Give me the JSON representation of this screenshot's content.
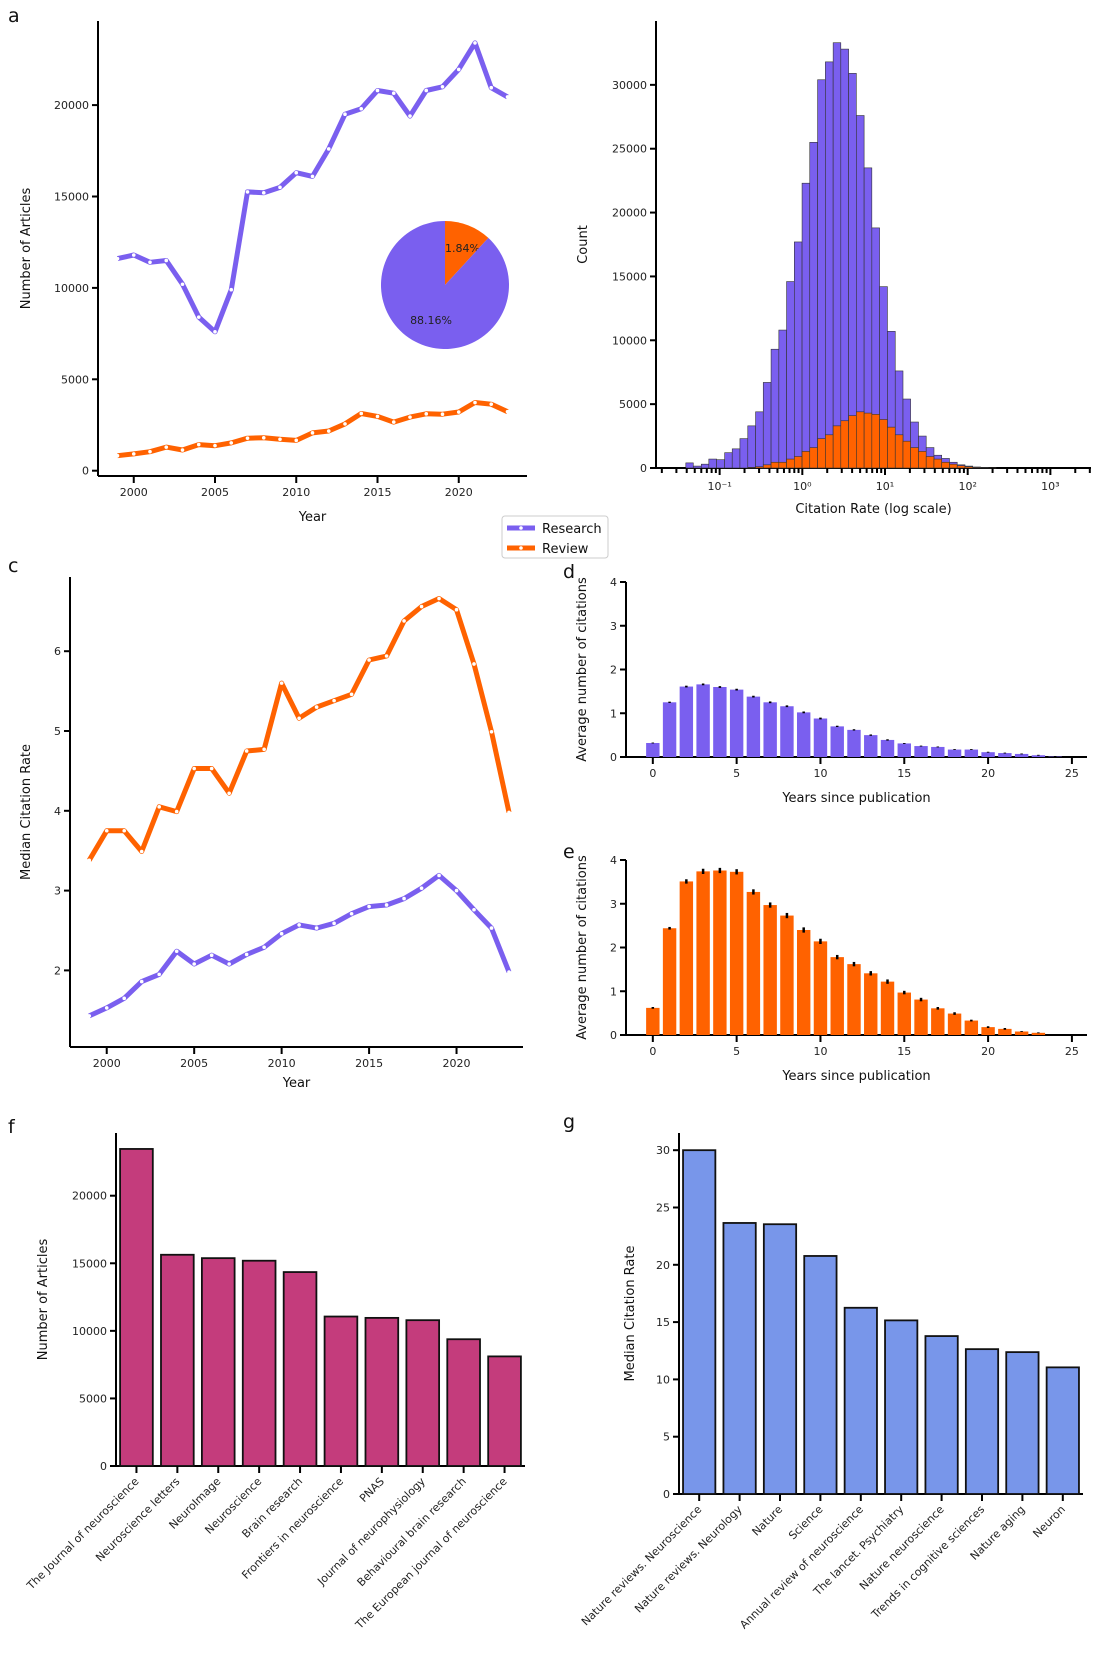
{
  "panel_labels": {
    "a": "a",
    "c": "c",
    "d": "d",
    "e": "e",
    "f": "f",
    "g": "g"
  },
  "colors": {
    "research": "#7A5FEF",
    "review": "#FF6200",
    "journals_count": "#C43C7C",
    "journals_citation": "#7896EA"
  },
  "legend": {
    "placement": "between panels a/b and c/d",
    "entries": [
      "Research",
      "Review"
    ]
  },
  "chart_data": [
    {
      "panel": "a",
      "type": "line",
      "xlabel": "Year",
      "ylabel": "Number of Articles",
      "xlim": [
        1997.8,
        2024.2
      ],
      "ylim": [
        -290,
        24600
      ],
      "xticks": [
        2000,
        2005,
        2010,
        2015,
        2020
      ],
      "yticks": [
        0,
        5000,
        10000,
        15000,
        20000
      ],
      "x": [
        1999,
        2000,
        2001,
        2002,
        2003,
        2004,
        2005,
        2006,
        2007,
        2008,
        2009,
        2010,
        2011,
        2012,
        2013,
        2014,
        2015,
        2016,
        2017,
        2018,
        2019,
        2020,
        2021,
        2022,
        2023
      ],
      "series": [
        {
          "name": "Research",
          "color": "#7A5FEF",
          "values": [
            11600,
            11800,
            11400,
            11500,
            10200,
            8400,
            7600,
            9900,
            15250,
            15200,
            15500,
            16300,
            16100,
            17600,
            19500,
            19800,
            20800,
            20650,
            19400,
            20800,
            21000,
            21950,
            23400,
            20950,
            20450
          ]
        },
        {
          "name": "Review",
          "color": "#FF6200",
          "values": [
            820,
            920,
            1040,
            1290,
            1130,
            1430,
            1370,
            1520,
            1780,
            1800,
            1720,
            1660,
            2070,
            2170,
            2560,
            3130,
            2970,
            2660,
            2930,
            3110,
            3090,
            3210,
            3730,
            3640,
            3230
          ]
        }
      ]
    },
    {
      "panel": "a-inset",
      "type": "pie",
      "values": [
        88.16,
        11.84
      ],
      "labels": [
        "88.16%",
        "11.84%"
      ],
      "colors": [
        "#7A5FEF",
        "#FF6200"
      ]
    },
    {
      "panel": "b",
      "type": "bar",
      "subtype": "histogram",
      "xscale": "log",
      "xlabel": "Citation Rate (log scale)",
      "ylabel": "Count",
      "xlim": [
        0.017,
        3100
      ],
      "ylim": [
        0,
        35000
      ],
      "yticks": [
        0,
        5000,
        10000,
        15000,
        20000,
        25000,
        30000
      ],
      "xticks": [
        0.1,
        1,
        10,
        100,
        1000
      ],
      "xticklabels": [
        "10⁻¹",
        "10⁰",
        "10¹",
        "10²",
        "10³"
      ],
      "bin_edges": [
        0.039,
        0.048,
        0.06,
        0.074,
        0.092,
        0.115,
        0.142,
        0.176,
        0.219,
        0.272,
        0.337,
        0.419,
        0.52,
        0.645,
        0.8,
        0.993,
        1.23,
        1.53,
        1.9,
        2.36,
        2.92,
        3.63,
        4.5,
        5.59,
        6.93,
        8.6,
        10.7,
        13.3,
        16.5,
        20.4,
        25.4,
        31.5,
        39.1,
        48.5,
        60.2,
        74.7,
        92.7,
        115,
        143,
        177,
        220
      ],
      "series": [
        {
          "name": "Research",
          "color": "#7A5FEF",
          "values": [
            400,
            150,
            300,
            700,
            650,
            1200,
            1500,
            2300,
            3300,
            4400,
            6700,
            9300,
            10800,
            14600,
            17700,
            22300,
            25500,
            30400,
            31800,
            33300,
            32800,
            30900,
            27600,
            23500,
            18800,
            14200,
            10700,
            7600,
            5400,
            3600,
            2500,
            1600,
            1000,
            750,
            450,
            250,
            150,
            80,
            40,
            10
          ]
        },
        {
          "name": "Review",
          "color": "#FF6200",
          "values": [
            0,
            0,
            0,
            0,
            0,
            0,
            0,
            0,
            50,
            100,
            250,
            450,
            450,
            700,
            900,
            1300,
            1600,
            2300,
            2600,
            3300,
            3700,
            4100,
            4400,
            4300,
            4200,
            3800,
            3200,
            2600,
            2100,
            1600,
            1300,
            900,
            700,
            450,
            300,
            180,
            100,
            50,
            20,
            5
          ]
        }
      ]
    },
    {
      "panel": "c",
      "type": "line",
      "xlabel": "Year",
      "ylabel": "Median Citation Rate",
      "xlim": [
        1997.9,
        2023.8
      ],
      "ylim": [
        1.04,
        6.93
      ],
      "xticks": [
        2000,
        2005,
        2010,
        2015,
        2020
      ],
      "yticks": [
        2,
        3,
        4,
        5,
        6
      ],
      "x": [
        1999,
        2000,
        2001,
        2002,
        2003,
        2004,
        2005,
        2006,
        2007,
        2008,
        2009,
        2010,
        2011,
        2012,
        2013,
        2014,
        2015,
        2016,
        2017,
        2018,
        2019,
        2020,
        2021,
        2022,
        2023
      ],
      "series": [
        {
          "name": "Research",
          "color": "#7A5FEF",
          "values": [
            1.43,
            1.53,
            1.65,
            1.86,
            1.95,
            2.24,
            2.08,
            2.19,
            2.08,
            2.2,
            2.29,
            2.46,
            2.57,
            2.53,
            2.59,
            2.71,
            2.8,
            2.82,
            2.9,
            3.03,
            3.19,
            3.0,
            2.76,
            2.53,
            1.98
          ]
        },
        {
          "name": "Review",
          "color": "#FF6200",
          "values": [
            3.38,
            3.75,
            3.75,
            3.49,
            4.05,
            3.99,
            4.53,
            4.53,
            4.22,
            4.75,
            4.77,
            5.6,
            5.16,
            5.3,
            5.38,
            5.46,
            5.89,
            5.94,
            6.38,
            6.56,
            6.66,
            6.52,
            5.84,
            4.99,
            3.98
          ]
        }
      ]
    },
    {
      "panel": "d",
      "type": "bar",
      "xlabel": "Years since publication",
      "ylabel": "Average number of citations",
      "xlim": [
        -1.6,
        25.9
      ],
      "ylim": [
        0,
        4
      ],
      "xticks": [
        0,
        5,
        10,
        15,
        20,
        25
      ],
      "yticks": [
        0,
        1,
        2,
        3,
        4
      ],
      "x": [
        0,
        1,
        2,
        3,
        4,
        5,
        6,
        7,
        8,
        9,
        10,
        11,
        12,
        13,
        14,
        15,
        16,
        17,
        18,
        19,
        20,
        21,
        22,
        23,
        24
      ],
      "color": "#7A5FEF",
      "values": [
        0.32,
        1.25,
        1.61,
        1.66,
        1.6,
        1.54,
        1.38,
        1.25,
        1.16,
        1.02,
        0.88,
        0.7,
        0.62,
        0.5,
        0.39,
        0.31,
        0.25,
        0.23,
        0.17,
        0.17,
        0.11,
        0.09,
        0.07,
        0.04,
        0.01
      ],
      "errors": [
        0.01,
        0.015,
        0.02,
        0.02,
        0.02,
        0.02,
        0.02,
        0.02,
        0.02,
        0.02,
        0.02,
        0.015,
        0.015,
        0.015,
        0.015,
        0.01,
        0.01,
        0.01,
        0.01,
        0.01,
        0.01,
        0.01,
        0.01,
        0.01,
        0.01
      ]
    },
    {
      "panel": "e",
      "type": "bar",
      "xlabel": "Years since publication",
      "ylabel": "Average number of citations",
      "xlim": [
        -1.6,
        25.9
      ],
      "ylim": [
        0,
        4
      ],
      "xticks": [
        0,
        5,
        10,
        15,
        20,
        25
      ],
      "yticks": [
        0,
        1,
        2,
        3,
        4
      ],
      "x": [
        0,
        1,
        2,
        3,
        4,
        5,
        6,
        7,
        8,
        9,
        10,
        11,
        12,
        13,
        14,
        15,
        16,
        17,
        18,
        19,
        20,
        21,
        22,
        23
      ],
      "color": "#FF6200",
      "values": [
        0.62,
        2.44,
        3.51,
        3.74,
        3.76,
        3.73,
        3.27,
        2.97,
        2.73,
        2.4,
        2.14,
        1.78,
        1.62,
        1.41,
        1.22,
        0.97,
        0.81,
        0.61,
        0.49,
        0.33,
        0.18,
        0.14,
        0.08,
        0.05
      ],
      "errors": [
        0.02,
        0.03,
        0.05,
        0.06,
        0.06,
        0.06,
        0.06,
        0.06,
        0.06,
        0.06,
        0.06,
        0.05,
        0.05,
        0.05,
        0.05,
        0.04,
        0.04,
        0.03,
        0.03,
        0.02,
        0.02,
        0.02,
        0.01,
        0.01
      ]
    },
    {
      "panel": "f",
      "type": "bar",
      "xlabel": "",
      "ylabel": "Number of Articles",
      "ylim": [
        0,
        24640
      ],
      "yticks": [
        0,
        5000,
        10000,
        15000,
        20000
      ],
      "color": "#C43C7C",
      "categories": [
        "The Journal of neuroscience",
        "Neuroscience letters",
        "NeuroImage",
        "Neuroscience",
        "Brain research",
        "Frontiers in neuroscience",
        "PNAS",
        "Journal of neurophysiology",
        "Behavioural brain research",
        "The European journal of neuroscience"
      ],
      "values": [
        23460,
        15630,
        15380,
        15190,
        14350,
        11060,
        10960,
        10790,
        9380,
        8110
      ]
    },
    {
      "panel": "g",
      "type": "bar",
      "xlabel": "",
      "ylabel": "Median Citation Rate",
      "ylim": [
        0,
        31.5
      ],
      "yticks": [
        0,
        5,
        10,
        15,
        20,
        25,
        30
      ],
      "color": "#7896EA",
      "categories": [
        "Nature reviews. Neuroscience",
        "Nature reviews. Neurology",
        "Nature",
        "Science",
        "Annual review of neuroscience",
        "The lancet. Psychiatry",
        "Nature neuroscience",
        "Trends in cognitive sciences",
        "Nature aging",
        "Neuron"
      ],
      "values": [
        30.0,
        23.65,
        23.54,
        20.77,
        16.25,
        15.15,
        13.78,
        12.64,
        12.38,
        11.05
      ]
    }
  ]
}
